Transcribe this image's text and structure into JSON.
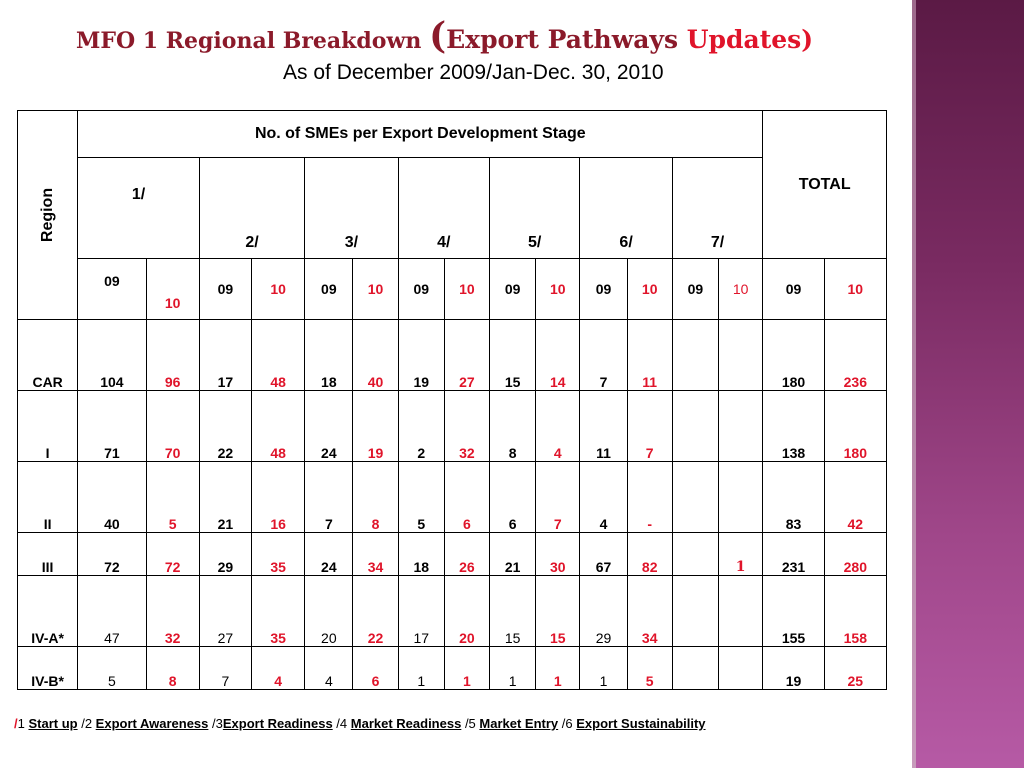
{
  "title": {
    "part1": "MFO 1  Regional Breakdown ",
    "open_paren": "(",
    "part2": "Export Pathways ",
    "part3": "Updates)",
    "subtitle": "As of December 2009/Jan-Dec. 30, 2010"
  },
  "colors": {
    "accent_red": "#e0142a",
    "title_maroon": "#8b1a2a",
    "sidebar": "#7a2b62"
  },
  "table": {
    "region_header": "Region",
    "stage_header": "No. of SMEs per Export Development Stage",
    "total_header": "TOTAL",
    "stages": [
      "1/",
      "2/",
      "3/",
      "4/",
      "5/",
      "6/",
      "7/"
    ],
    "year_a": "09",
    "year_b": "10",
    "rows": [
      {
        "region": "CAR",
        "values": [
          "104",
          "96",
          "17",
          "48",
          "18",
          "40",
          "19",
          "27",
          "15",
          "14",
          "7",
          "11",
          "",
          "",
          "180",
          "236"
        ]
      },
      {
        "region": "I",
        "values": [
          "71",
          "70",
          "22",
          "48",
          "24",
          "19",
          "2",
          "32",
          "8",
          "4",
          "11",
          "7",
          "",
          "",
          "138",
          "180"
        ]
      },
      {
        "region": "II",
        "values": [
          "40",
          "5",
          "21",
          "16",
          "7",
          "8",
          "5",
          "6",
          "6",
          "7",
          "4",
          "-",
          "",
          "",
          "83",
          "42"
        ]
      },
      {
        "region": "III",
        "values": [
          "72",
          "72",
          "29",
          "35",
          "24",
          "34",
          "18",
          "26",
          "21",
          "30",
          "67",
          "82",
          "",
          "1",
          "231",
          "280"
        ]
      },
      {
        "region": "IV-A*",
        "values": [
          "47",
          "32",
          "27",
          "35",
          "20",
          "22",
          "17",
          "20",
          "15",
          "15",
          "29",
          "34",
          "",
          "",
          "155",
          "158"
        ]
      },
      {
        "region": "IV-B*",
        "values": [
          "5",
          "8",
          "7",
          "4",
          "4",
          "6",
          "1",
          "1",
          "1",
          "1",
          "1",
          "5",
          "",
          "",
          "19",
          "25"
        ]
      }
    ]
  },
  "footer": {
    "lead_slash": "/",
    "n1": "1 ",
    "s1": "Start up",
    "n2": "  /2 ",
    "s2": "Export Awareness",
    "n3": "  /3",
    "s3": "Export Readiness",
    "n4": "  /4 ",
    "s4": "Market Readiness",
    "n5": "  /5 ",
    "s5": "Market Entry",
    "n6": "  /6 ",
    "s6": "Export Sustainability"
  }
}
